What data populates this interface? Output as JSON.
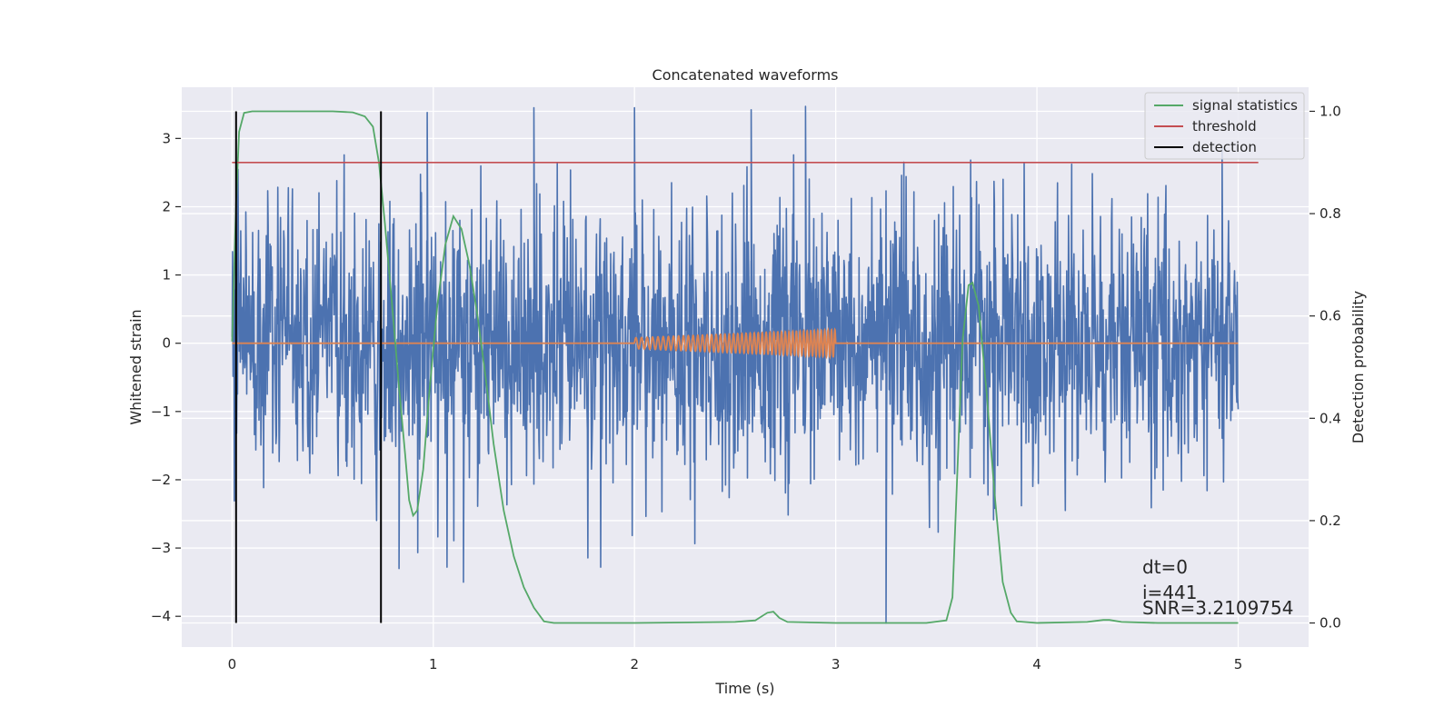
{
  "chart_data": {
    "type": "line",
    "title": "Concatenated waveforms",
    "xlabel": "Time (s)",
    "ylabel": "Whitened strain",
    "y2label": "Detection probability",
    "xlim": [
      -0.25,
      5.35
    ],
    "ylim": [
      -4.45,
      3.75
    ],
    "y2lim": [
      -0.047,
      1.047
    ],
    "x_ticks": [
      0,
      1,
      2,
      3,
      4,
      5
    ],
    "x_tick_labels": [
      "0",
      "1",
      "2",
      "3",
      "4",
      "5"
    ],
    "y_ticks": [
      -4,
      -3,
      -2,
      -1,
      0,
      1,
      2,
      3
    ],
    "y_tick_labels": [
      "−4",
      "−3",
      "−2",
      "−1",
      "0",
      "1",
      "2",
      "3"
    ],
    "y2_ticks": [
      0.0,
      0.2,
      0.4,
      0.6,
      0.8,
      1.0
    ],
    "y2_tick_labels": [
      "0.0",
      "0.2",
      "0.4",
      "0.6",
      "0.8",
      "1.0"
    ],
    "grid": true,
    "legend_position": "top-right",
    "colors": {
      "background": "#eaeaf2",
      "grid": "#ffffff",
      "strain": "#4c72b0",
      "injection": "#dd8452",
      "signal_statistics": "#55a868",
      "threshold": "#c44e52",
      "detection": "#000000"
    },
    "series": [
      {
        "name": "whitened strain",
        "axis": "left",
        "style": "noise",
        "x_range": [
          0,
          5
        ],
        "std": 0.95,
        "peak_max": 3.45,
        "peak_min": -4.1,
        "spikes": [
          {
            "x": 0.97,
            "y": 3.38
          },
          {
            "x": 1.5,
            "y": 3.45
          },
          {
            "x": 2.0,
            "y": 3.45
          },
          {
            "x": 2.58,
            "y": 3.42
          },
          {
            "x": 2.85,
            "y": 3.47
          },
          {
            "x": 3.25,
            "y": -4.1
          },
          {
            "x": 0.83,
            "y": -3.3
          },
          {
            "x": 1.15,
            "y": -3.5
          },
          {
            "x": 4.92,
            "y": 2.85
          }
        ]
      },
      {
        "name": "injected signal",
        "axis": "left",
        "style": "chirp",
        "x_range": [
          0,
          5
        ],
        "chirp_range": [
          2.0,
          3.0
        ],
        "start_amplitude": 0.08,
        "end_amplitude": 0.2,
        "start_frequency": 35,
        "end_frequency": 60
      },
      {
        "name": "signal statistics",
        "axis": "right",
        "points": [
          [
            0.0,
            0.55
          ],
          [
            0.02,
            0.82
          ],
          [
            0.035,
            0.96
          ],
          [
            0.06,
            0.997
          ],
          [
            0.1,
            1.0
          ],
          [
            0.3,
            1.0
          ],
          [
            0.5,
            1.0
          ],
          [
            0.6,
            0.998
          ],
          [
            0.66,
            0.99
          ],
          [
            0.7,
            0.97
          ],
          [
            0.73,
            0.9
          ],
          [
            0.76,
            0.78
          ],
          [
            0.8,
            0.6
          ],
          [
            0.83,
            0.46
          ],
          [
            0.86,
            0.33
          ],
          [
            0.88,
            0.24
          ],
          [
            0.9,
            0.21
          ],
          [
            0.92,
            0.22
          ],
          [
            0.95,
            0.3
          ],
          [
            0.98,
            0.45
          ],
          [
            1.02,
            0.62
          ],
          [
            1.06,
            0.74
          ],
          [
            1.1,
            0.795
          ],
          [
            1.14,
            0.77
          ],
          [
            1.18,
            0.7
          ],
          [
            1.22,
            0.6
          ],
          [
            1.26,
            0.48
          ],
          [
            1.3,
            0.35
          ],
          [
            1.35,
            0.22
          ],
          [
            1.4,
            0.13
          ],
          [
            1.45,
            0.07
          ],
          [
            1.5,
            0.03
          ],
          [
            1.55,
            0.003
          ],
          [
            1.6,
            0.0
          ],
          [
            2.0,
            0.0
          ],
          [
            2.5,
            0.002
          ],
          [
            2.6,
            0.005
          ],
          [
            2.66,
            0.02
          ],
          [
            2.69,
            0.022
          ],
          [
            2.72,
            0.01
          ],
          [
            2.76,
            0.002
          ],
          [
            3.0,
            0.0
          ],
          [
            3.45,
            0.0
          ],
          [
            3.55,
            0.005
          ],
          [
            3.58,
            0.05
          ],
          [
            3.6,
            0.25
          ],
          [
            3.63,
            0.55
          ],
          [
            3.66,
            0.66
          ],
          [
            3.68,
            0.665
          ],
          [
            3.71,
            0.62
          ],
          [
            3.75,
            0.45
          ],
          [
            3.79,
            0.25
          ],
          [
            3.83,
            0.08
          ],
          [
            3.87,
            0.02
          ],
          [
            3.9,
            0.003
          ],
          [
            4.0,
            0.0
          ],
          [
            4.25,
            0.002
          ],
          [
            4.33,
            0.006
          ],
          [
            4.36,
            0.006
          ],
          [
            4.42,
            0.002
          ],
          [
            4.6,
            0.0
          ],
          [
            5.0,
            0.0
          ]
        ]
      },
      {
        "name": "threshold",
        "axis": "right",
        "x": [
          0.0,
          5.1
        ],
        "values": [
          0.9,
          0.9
        ]
      },
      {
        "name": "detection",
        "axis": "right",
        "vlines": [
          0.02,
          0.74
        ],
        "ymin": 0.0,
        "ymax": 1.0
      }
    ],
    "legend": [
      "signal statistics",
      "threshold",
      "detection"
    ],
    "annotations": [
      "dt=0",
      "i=441",
      "SNR=3.2109754"
    ]
  }
}
